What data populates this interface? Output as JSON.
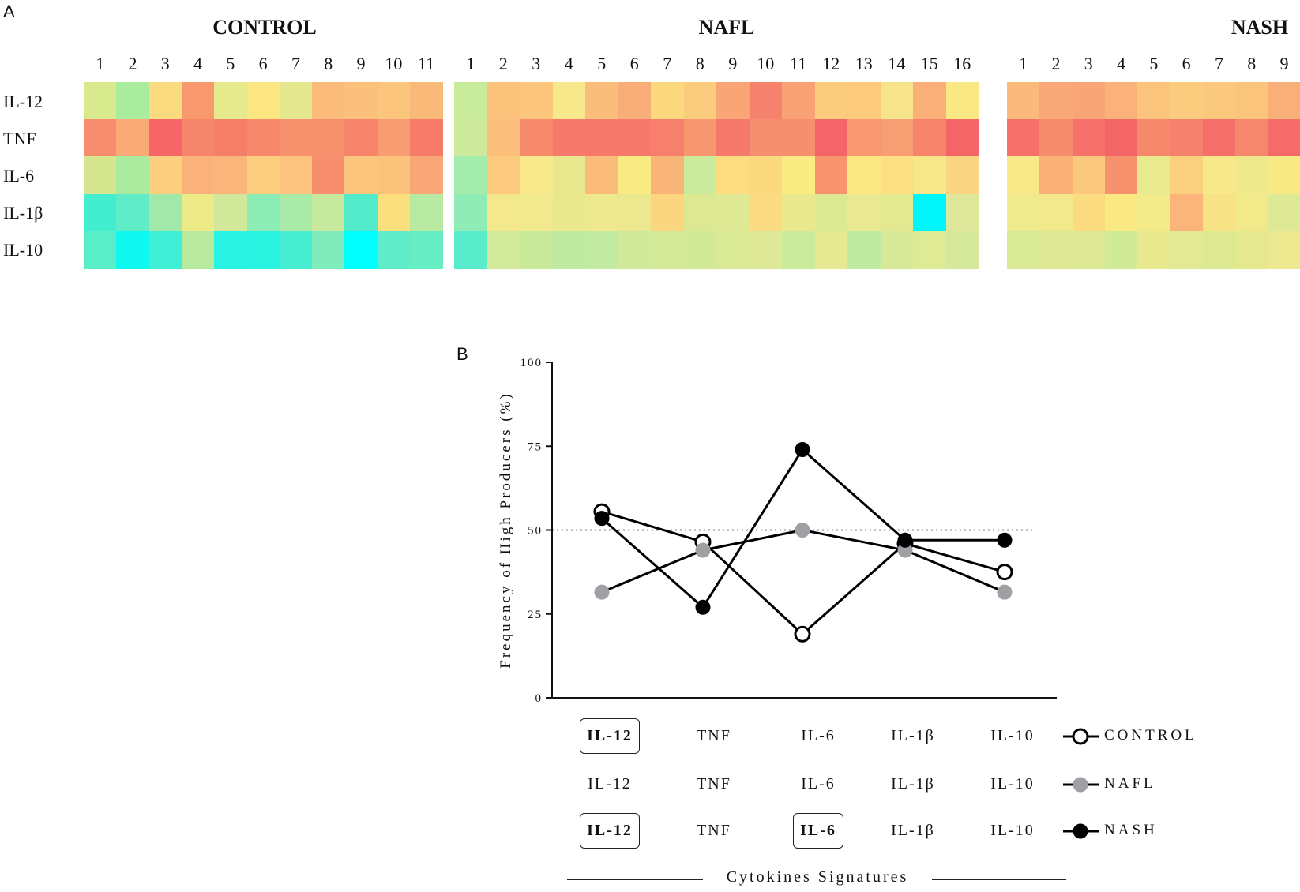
{
  "panel_a_letter": "A",
  "panel_b_letter": "B",
  "heatmap": {
    "rows": [
      "IL-12",
      "TNF",
      "IL-6",
      "IL-1β",
      "IL-10"
    ],
    "groups": [
      {
        "name": "CONTROL",
        "columns": [
          "1",
          "2",
          "3",
          "4",
          "5",
          "6",
          "7",
          "8",
          "9",
          "10",
          "11"
        ],
        "colors": [
          [
            "#d9e98e",
            "#a9ec9e",
            "#fbdb7f",
            "#f7986d",
            "#e6ea8c",
            "#fbe682",
            "#e3e88e",
            "#fbbc7b",
            "#fbc17c",
            "#fbc57c",
            "#f9b979"
          ],
          [
            "#f78c6e",
            "#faaa77",
            "#f66668",
            "#f6866b",
            "#f67f6a",
            "#f6886b",
            "#f7906c",
            "#f7906c",
            "#f6846b",
            "#f89c72",
            "#f67c69"
          ],
          [
            "#d5e68e",
            "#abea9f",
            "#fbcf7e",
            "#fab27a",
            "#fab67a",
            "#fbcf7e",
            "#fbc37d",
            "#f78f6e",
            "#fbc57d",
            "#fbc27b",
            "#f9a777"
          ],
          [
            "#43eecf",
            "#60ecc6",
            "#a1e8aa",
            "#edea88",
            "#d1e89a",
            "#8cecb6",
            "#a9eaa8",
            "#c6e99d",
            "#53eccb",
            "#fbdf7f",
            "#b8e9a3"
          ],
          [
            "#59eec8",
            "#0ef8f0",
            "#3ff0d7",
            "#b9e99f",
            "#28f3e2",
            "#2af3e0",
            "#47eed1",
            "#80ecbc",
            "#00ffff",
            "#5eedc8",
            "#67edc4"
          ]
        ]
      },
      {
        "name": "NAFL",
        "columns": [
          "1",
          "2",
          "3",
          "4",
          "5",
          "6",
          "7",
          "8",
          "9",
          "10",
          "11",
          "12",
          "13",
          "14",
          "15",
          "16"
        ],
        "colors": [
          [
            "#c8ec9c",
            "#fbc27c",
            "#fbc57c",
            "#f6e88b",
            "#fbbd7b",
            "#f9ad78",
            "#fbd87e",
            "#fbcc7e",
            "#f9a576",
            "#f5826d",
            "#f9a276",
            "#fbcc7d",
            "#fbca7d",
            "#f7e48a",
            "#faae78",
            "#f9e884"
          ],
          [
            "#cde99c",
            "#fbbf7b",
            "#f78a6d",
            "#f6796b",
            "#f6796b",
            "#f6796b",
            "#f6806b",
            "#f8966f",
            "#f67a6b",
            "#f68f6e",
            "#f68f6e",
            "#f46468",
            "#f89770",
            "#f79e72",
            "#f6846b",
            "#f46568"
          ],
          [
            "#a4ecac",
            "#fbca7e",
            "#f7e98c",
            "#e9e88f",
            "#fbbb7a",
            "#f9ec84",
            "#f9b478",
            "#c9eb9b",
            "#fbdc7f",
            "#fbd97e",
            "#faec83",
            "#f7946e",
            "#fbe882",
            "#fbdf80",
            "#f7e68a",
            "#fbd581"
          ],
          [
            "#8fecb6",
            "#f4e88c",
            "#f1e98e",
            "#eae88f",
            "#eee98f",
            "#ebe88f",
            "#fbd580",
            "#dde893",
            "#dfe993",
            "#fbdb82",
            "#e8e98f",
            "#dae992",
            "#e9e991",
            "#e2e991",
            "#00f6fa",
            "#dfe89a"
          ],
          [
            "#58ecca",
            "#d2ea99",
            "#c9ea9b",
            "#bfeaa1",
            "#c2eaa0",
            "#d0ea99",
            "#d5e996",
            "#d0ea97",
            "#d9e995",
            "#dde996",
            "#cbea9c",
            "#e5e992",
            "#bfeaa1",
            "#d7e996",
            "#dfea94",
            "#d6e89a"
          ]
        ]
      },
      {
        "name": "NASH",
        "columns": [
          "1",
          "2",
          "3",
          "4",
          "5",
          "6",
          "7",
          "8",
          "9"
        ],
        "colors": [
          [
            "#fbba7b",
            "#f9a878",
            "#f9a578",
            "#fbb17a",
            "#fbc37c",
            "#fbcc7e",
            "#fbc97e",
            "#fbc47c",
            "#f9b078"
          ],
          [
            "#f6716a",
            "#f78b6e",
            "#f6716a",
            "#f46568",
            "#f6886c",
            "#f6816c",
            "#f5706a",
            "#f6866c",
            "#f56b69"
          ],
          [
            "#f8ea88",
            "#f9b178",
            "#fbc97d",
            "#f7926f",
            "#e9e990",
            "#fbd07e",
            "#f7e98a",
            "#eeea8c",
            "#f7ea85"
          ],
          [
            "#efea8c",
            "#f2e88c",
            "#fbdb80",
            "#fae882",
            "#f3ea89",
            "#fbb57a",
            "#f7e386",
            "#f1e98a",
            "#dde995"
          ],
          [
            "#dae995",
            "#dfe995",
            "#dde995",
            "#d1ea97",
            "#e8e98f",
            "#e1e992",
            "#dce991",
            "#e6e890",
            "#ece991"
          ]
        ]
      }
    ]
  },
  "chart_data": {
    "type": "line",
    "ylabel": "Frequency of High Producers (%)",
    "ylim": [
      0,
      100
    ],
    "yticks": [
      "0",
      "25",
      "50",
      "75",
      "100"
    ],
    "reference_line": 50,
    "categories": [
      "IL-12",
      "TNF",
      "IL-6",
      "IL-1β",
      "IL-10"
    ],
    "series": [
      {
        "name": "CONTROL",
        "marker": "open-circle",
        "color": "#000000",
        "values": [
          55.5,
          46.5,
          19,
          46,
          37.5
        ]
      },
      {
        "name": "NAFL",
        "marker": "filled-circle",
        "color": "#a0a0a4",
        "values": [
          31.5,
          44,
          50,
          44,
          31.5
        ]
      },
      {
        "name": "NASH",
        "marker": "filled-circle",
        "color": "#000000",
        "values": [
          53.5,
          27,
          74,
          47,
          47
        ]
      }
    ],
    "xlabel": "Cytokines Signatures"
  },
  "signatures": [
    {
      "name": "CONTROL",
      "labels": [
        "IL-12",
        "TNF",
        "IL-6",
        "IL-1β",
        "IL-10"
      ],
      "highlighted": [
        true,
        false,
        false,
        false,
        false
      ]
    },
    {
      "name": "NAFL",
      "labels": [
        "IL-12",
        "TNF",
        "IL-6",
        "IL-1β",
        "IL-10"
      ],
      "highlighted": [
        false,
        false,
        false,
        false,
        false
      ]
    },
    {
      "name": "NASH",
      "labels": [
        "IL-12",
        "TNF",
        "IL-6",
        "IL-1β",
        "IL-10"
      ],
      "highlighted": [
        true,
        false,
        true,
        false,
        false
      ]
    }
  ]
}
